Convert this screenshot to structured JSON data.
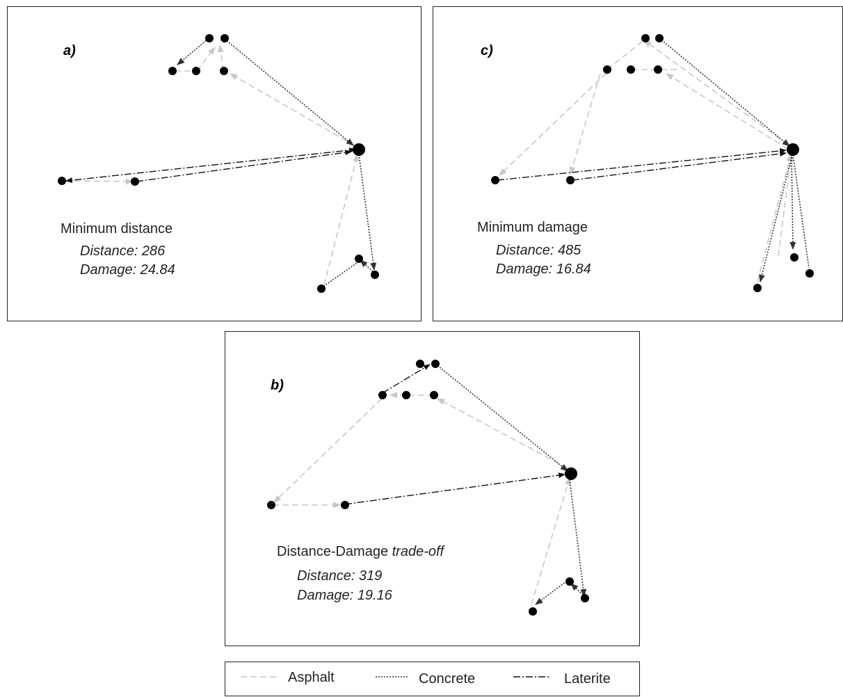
{
  "panels": {
    "a": {
      "tag": "a)",
      "title": "Minimum distance",
      "distance": "Distance: 286",
      "damage": "Damage: 24.84"
    },
    "c": {
      "tag": "c)",
      "title": "Minimum damage",
      "distance": "Distance: 485",
      "damage": "Damage: 16.84"
    },
    "b": {
      "tag": "b)",
      "title_prefix": "Distance-Damage ",
      "title_italic": "trade-off",
      "distance": "Distance: 319",
      "damage": "Damage: 19.16"
    }
  },
  "legend": {
    "asphalt": "Asphalt",
    "concrete": "Concrete",
    "laterite": "Laterite"
  },
  "colors": {
    "asphalt": "#c8c8c8",
    "concrete": "#333333",
    "laterite": "#111111",
    "node": "#000000"
  }
}
